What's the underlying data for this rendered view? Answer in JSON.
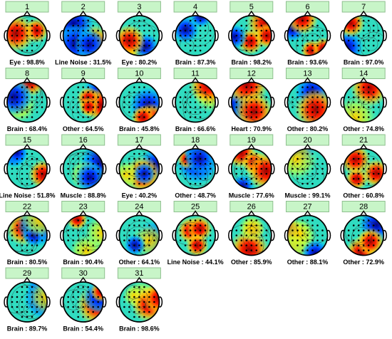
{
  "components": [
    {
      "number": 1,
      "label": "Eye : 98.8%"
    },
    {
      "number": 2,
      "label": "Line Noise : 31.5%"
    },
    {
      "number": 3,
      "label": "Eye : 80.2%"
    },
    {
      "number": 4,
      "label": "Brain : 87.3%"
    },
    {
      "number": 5,
      "label": "Brain : 98.2%"
    },
    {
      "number": 6,
      "label": "Brain : 93.6%"
    },
    {
      "number": 7,
      "label": "Brain : 97.0%"
    },
    {
      "number": 8,
      "label": "Brain : 68.4%"
    },
    {
      "number": 9,
      "label": "Other : 64.5%"
    },
    {
      "number": 10,
      "label": "Brain : 45.8%"
    },
    {
      "number": 11,
      "label": "Brain : 66.6%"
    },
    {
      "number": 12,
      "label": "Heart : 70.9%"
    },
    {
      "number": 13,
      "label": "Other : 80.2%"
    },
    {
      "number": 14,
      "label": "Other : 74.8%"
    },
    {
      "number": 15,
      "label": "Line Noise : 51.8%"
    },
    {
      "number": 16,
      "label": "Muscle : 88.8%"
    },
    {
      "number": 17,
      "label": "Eye : 40.2%"
    },
    {
      "number": 18,
      "label": "Other : 48.7%"
    },
    {
      "number": 19,
      "label": "Muscle : 77.6%"
    },
    {
      "number": 20,
      "label": "Muscle : 99.1%"
    },
    {
      "number": 21,
      "label": "Other : 60.8%"
    },
    {
      "number": 22,
      "label": "Brain : 80.5%"
    },
    {
      "number": 23,
      "label": "Brain : 90.4%"
    },
    {
      "number": 24,
      "label": "Other : 64.1%"
    },
    {
      "number": 25,
      "label": "Line Noise : 44.1%"
    },
    {
      "number": 26,
      "label": "Other : 85.9%"
    },
    {
      "number": 27,
      "label": "Other : 88.1%"
    },
    {
      "number": 28,
      "label": "Other : 72.9%"
    },
    {
      "number": 29,
      "label": "Brain : 89.7%"
    },
    {
      "number": 30,
      "label": "Brain : 54.4%"
    },
    {
      "number": 31,
      "label": "Brain : 98.6%"
    }
  ]
}
